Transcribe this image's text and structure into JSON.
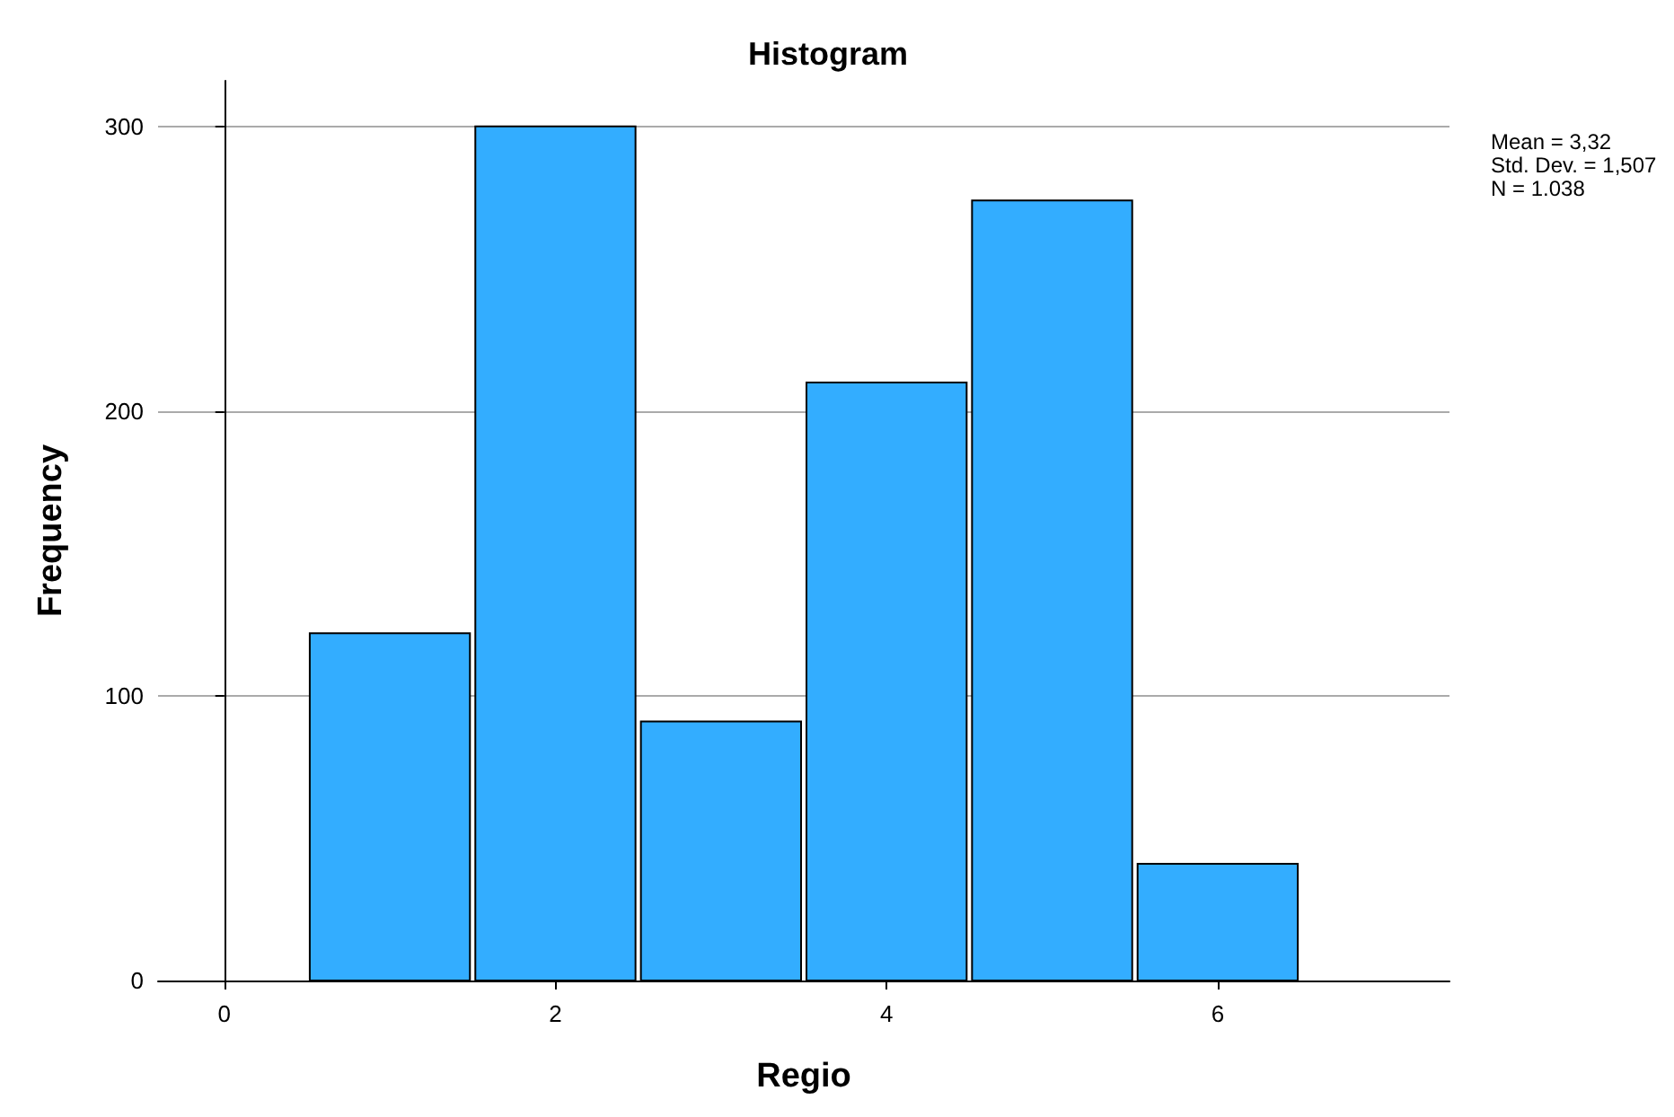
{
  "chart_data": {
    "type": "histogram",
    "title": "Histogram",
    "xlabel": "Regio",
    "ylabel": "Frequency",
    "bins": [
      0.5,
      1.5,
      2.5,
      3.5,
      4.5,
      5.5,
      6.5
    ],
    "values": [
      122,
      300,
      91,
      210,
      274,
      41
    ],
    "color": "#33adff",
    "xlim": [
      -0.4,
      7.4
    ],
    "xticks": [
      0,
      2,
      4,
      6
    ],
    "ylim": [
      0,
      316
    ],
    "yticks": [
      0,
      100,
      200,
      300
    ],
    "grid": "y",
    "annotations": [
      "Mean = 3,32",
      "Std. Dev. = 1,507",
      "N = 1.038"
    ]
  }
}
